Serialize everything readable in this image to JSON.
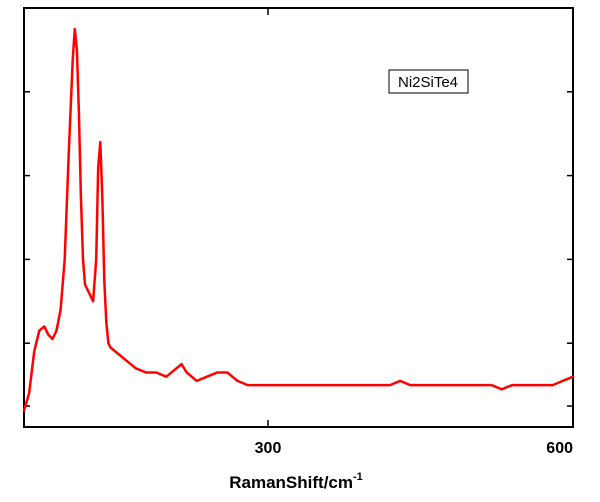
{
  "chart_data": {
    "type": "line",
    "title": "",
    "xlabel": "RamanShift/cm",
    "xlabel_superscript": "-1",
    "ylabel": "",
    "xlim": [
      60,
      600
    ],
    "ylim": [
      0,
      1.0
    ],
    "x_ticks": [
      300,
      600
    ],
    "y_ticks_unlabeled": [
      0.05,
      0.2,
      0.4,
      0.6,
      0.8,
      1.0
    ],
    "grid": false,
    "legend_position": "top-right",
    "series": [
      {
        "name": "Ni2SiTe4",
        "color": "#ff0000",
        "x": [
          60,
          65,
          70,
          75,
          80,
          84,
          88,
          92,
          96,
          100,
          104,
          108,
          110,
          112,
          114,
          116,
          118,
          120,
          124,
          128,
          131,
          133,
          135,
          137,
          139,
          141,
          143,
          145,
          150,
          155,
          160,
          170,
          180,
          190,
          200,
          210,
          215,
          220,
          225,
          230,
          240,
          250,
          255,
          260,
          265,
          270,
          280,
          290,
          300,
          320,
          340,
          360,
          380,
          400,
          420,
          430,
          440,
          460,
          480,
          500,
          520,
          530,
          540,
          560,
          580,
          590,
          600
        ],
        "y": [
          0.04,
          0.08,
          0.18,
          0.23,
          0.24,
          0.22,
          0.21,
          0.23,
          0.28,
          0.4,
          0.65,
          0.88,
          0.95,
          0.9,
          0.75,
          0.55,
          0.4,
          0.34,
          0.32,
          0.3,
          0.4,
          0.62,
          0.68,
          0.55,
          0.35,
          0.25,
          0.2,
          0.19,
          0.18,
          0.17,
          0.16,
          0.14,
          0.13,
          0.13,
          0.12,
          0.14,
          0.15,
          0.13,
          0.12,
          0.11,
          0.12,
          0.13,
          0.13,
          0.13,
          0.12,
          0.11,
          0.1,
          0.1,
          0.1,
          0.1,
          0.1,
          0.1,
          0.1,
          0.1,
          0.1,
          0.11,
          0.1,
          0.1,
          0.1,
          0.1,
          0.1,
          0.09,
          0.1,
          0.1,
          0.1,
          0.11,
          0.12
        ]
      }
    ]
  }
}
